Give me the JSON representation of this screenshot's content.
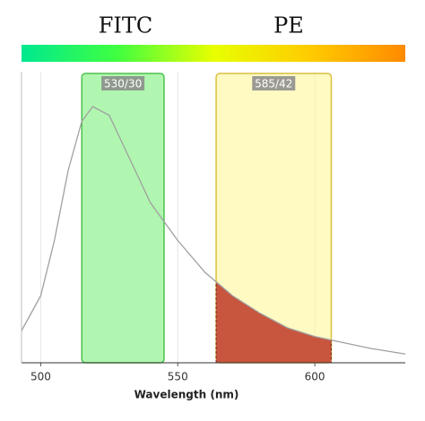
{
  "chart_data": {
    "type": "spectrum",
    "annotations": [
      "FITC",
      "PE"
    ],
    "x_label": "Wavelength (nm)",
    "xlim": [
      493,
      633
    ],
    "ylim": [
      0,
      100
    ],
    "xticks": [
      500,
      550,
      600
    ],
    "grid": true,
    "curve": {
      "color": "#a0a0a0",
      "x": [
        493,
        500,
        505,
        510,
        515,
        519,
        525,
        530,
        540,
        550,
        560,
        570,
        580,
        590,
        600,
        610,
        620,
        633
      ],
      "values": [
        11,
        23,
        42,
        66,
        83,
        88,
        85,
        75,
        55,
        42,
        31,
        23,
        17,
        12,
        9,
        7,
        5,
        3
      ]
    },
    "filters": [
      {
        "label": "530/30",
        "range": [
          515,
          545
        ],
        "color": "#7cf07c",
        "edge": "#4cc24c"
      },
      {
        "label": "585/42",
        "range": [
          564,
          606
        ],
        "color": "#fff59a",
        "edge": "#d8c040"
      }
    ],
    "spill_color": "#c8553d"
  }
}
